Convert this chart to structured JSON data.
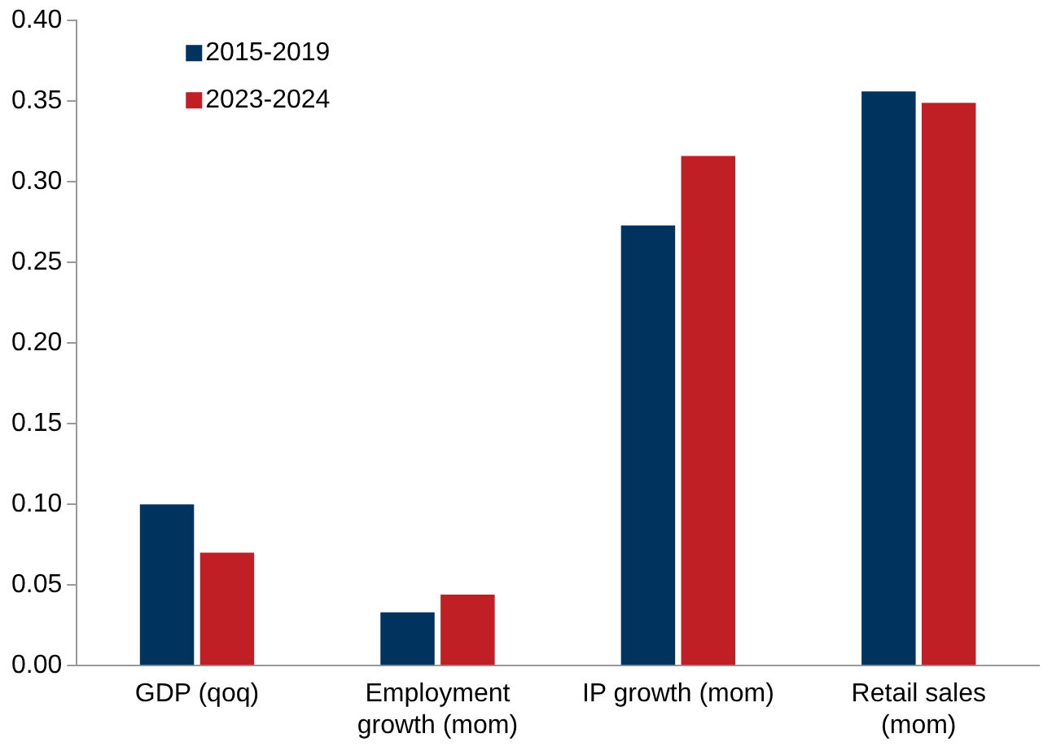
{
  "chart_data": {
    "type": "bar",
    "categories": [
      "GDP (qoq)",
      "Employment\ngrowth (mom)",
      "IP growth (mom)",
      "Retail sales\n(mom)"
    ],
    "series": [
      {
        "name": "2015-2019",
        "color": "#00345f",
        "values": [
          0.1,
          0.033,
          0.273,
          0.356
        ]
      },
      {
        "name": "2023-2024",
        "color": "#c01f26",
        "values": [
          0.07,
          0.044,
          0.316,
          0.349
        ]
      }
    ],
    "ylim": [
      0,
      0.4
    ],
    "yticks": [
      {
        "value": 0,
        "label": "0.00"
      },
      {
        "value": 0.05,
        "label": "0.05"
      },
      {
        "value": 0.1,
        "label": "0.10"
      },
      {
        "value": 0.15,
        "label": "0.15"
      },
      {
        "value": 0.2,
        "label": "0.20"
      },
      {
        "value": 0.25,
        "label": "0.25"
      },
      {
        "value": 0.3,
        "label": "0.30"
      },
      {
        "value": 0.35,
        "label": "0.35"
      },
      {
        "value": 0.4,
        "label": "0.40"
      }
    ],
    "grid": false,
    "legend": "top left"
  }
}
